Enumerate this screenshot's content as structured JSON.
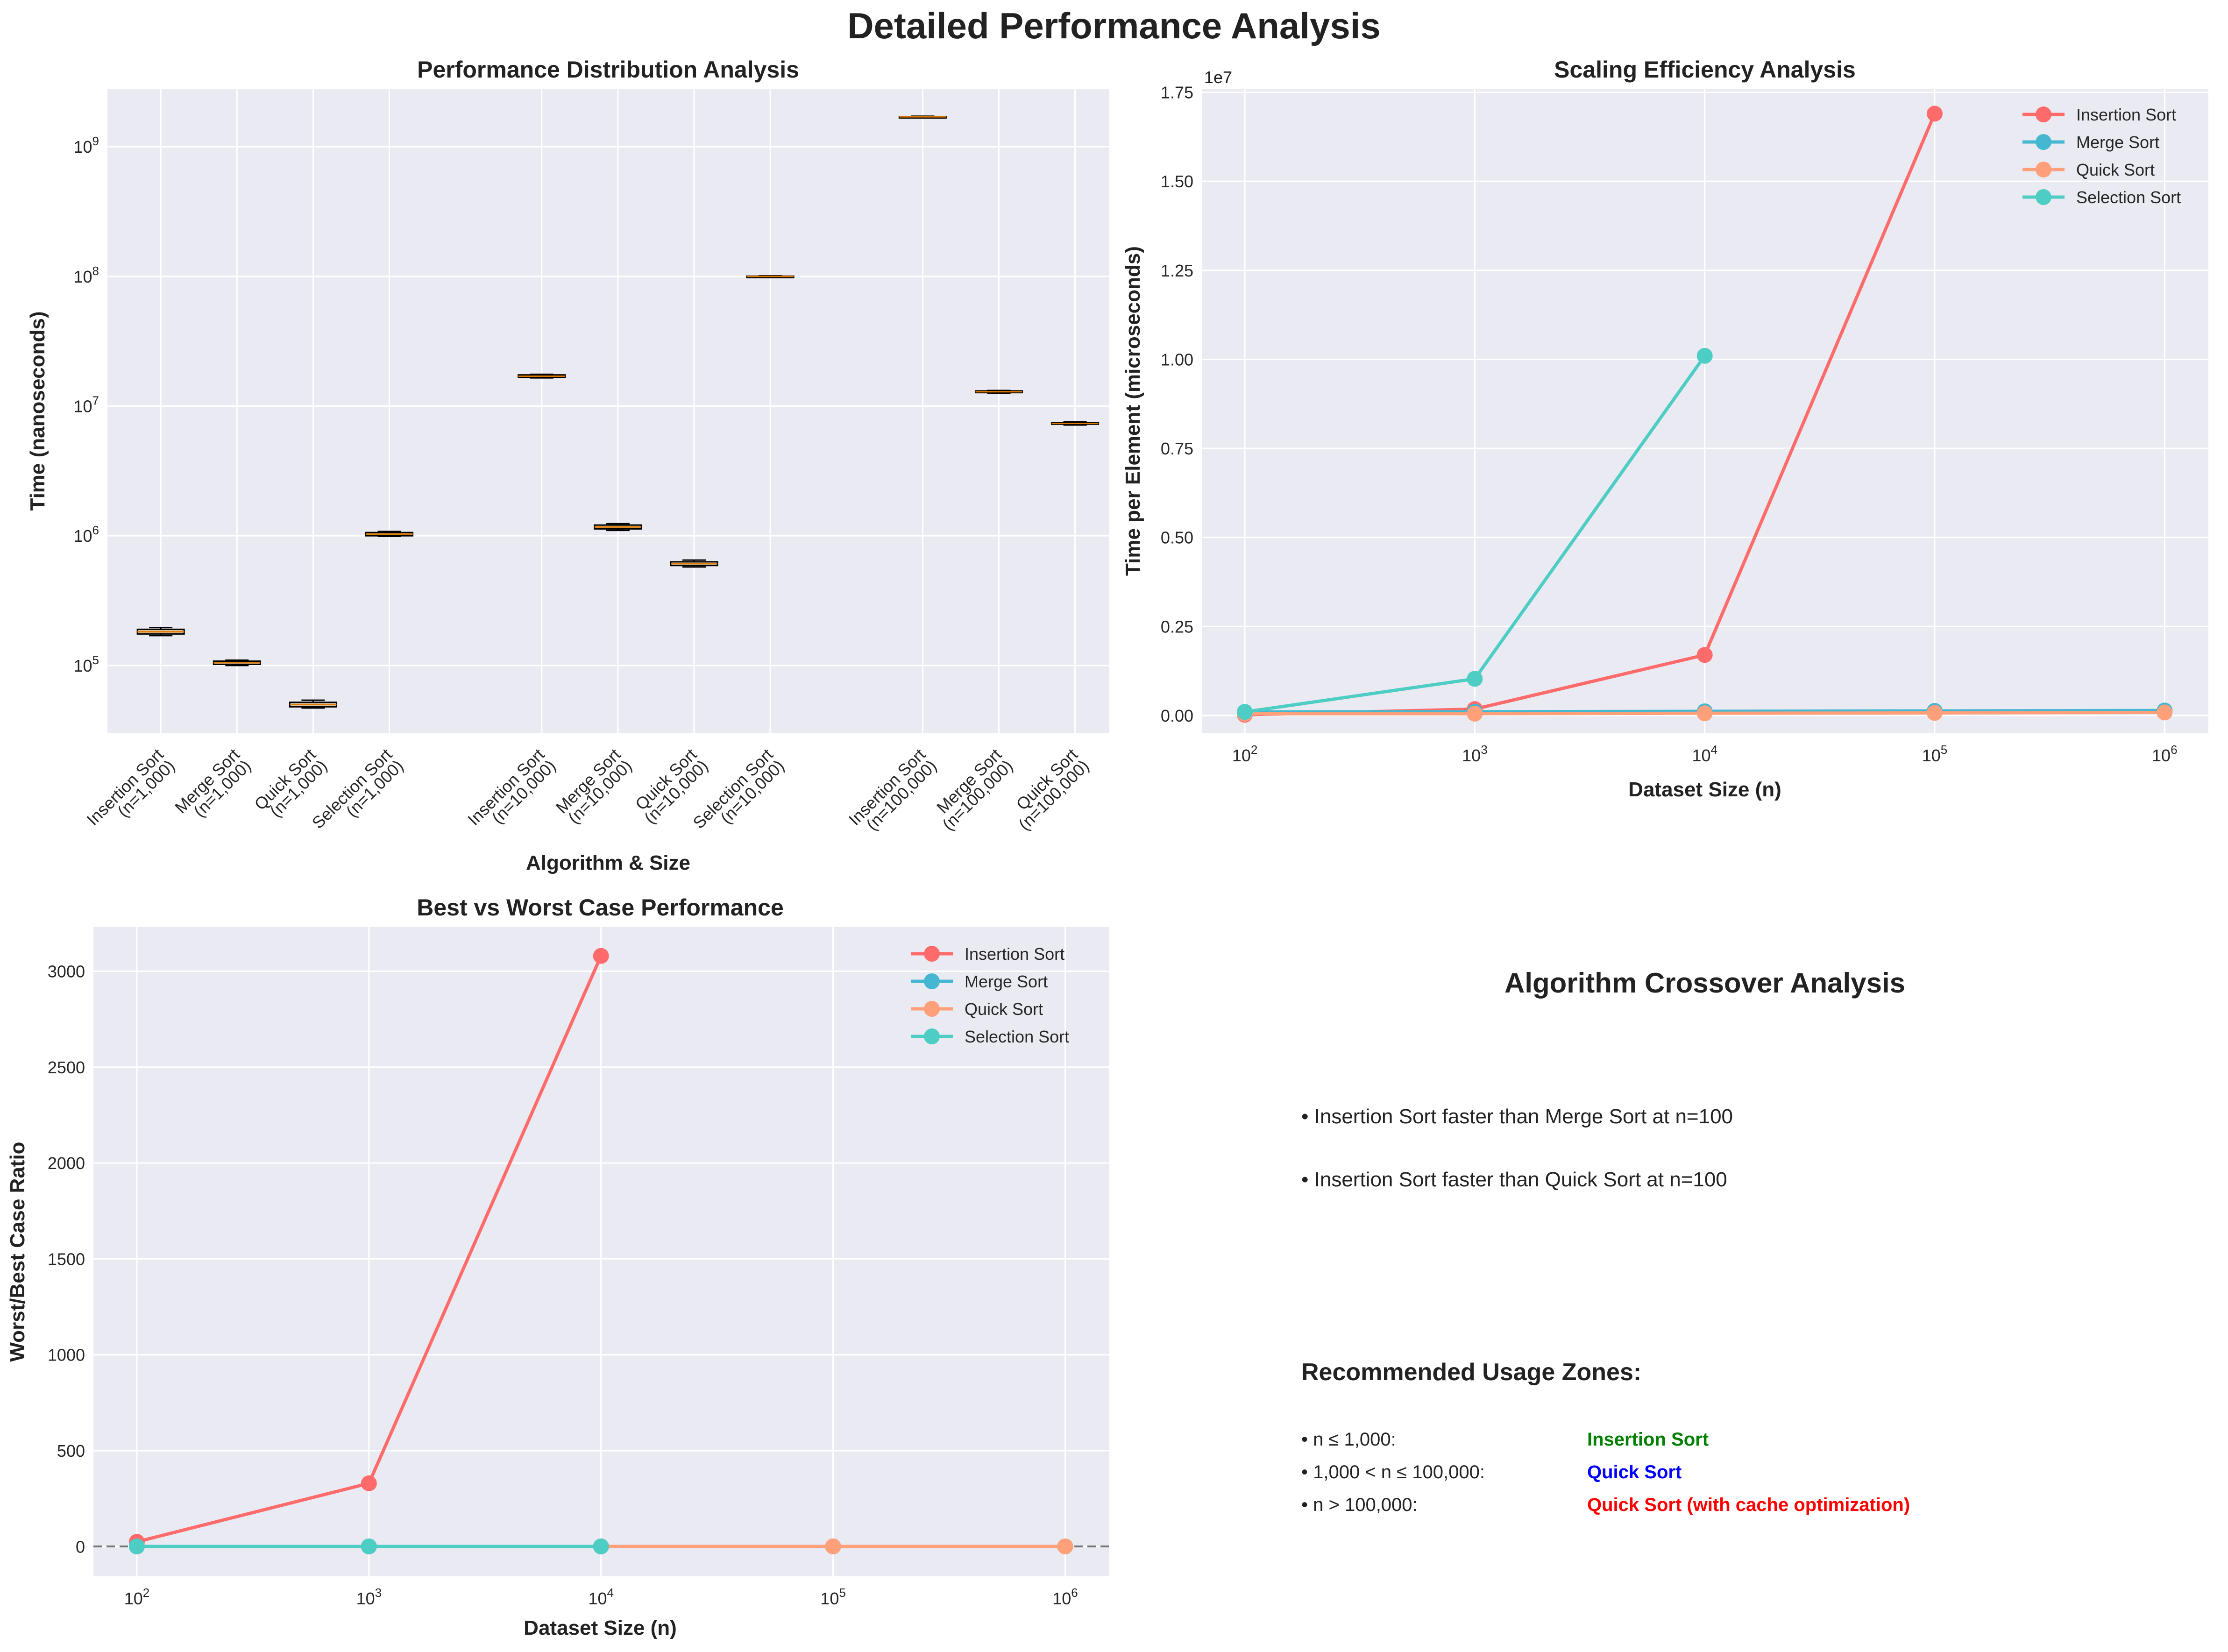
{
  "figure": {
    "title": "Detailed Performance Analysis"
  },
  "chart_data": [
    {
      "type": "box",
      "title": "Performance Distribution Analysis",
      "xlabel": "Algorithm & Size",
      "ylabel": "Time (nanoseconds)",
      "yscale": "log",
      "ylim": [
        30000,
        2800000000
      ],
      "yticks": [
        {
          "v": 100000,
          "b": "10",
          "e": "5"
        },
        {
          "v": 1000000,
          "b": "10",
          "e": "6"
        },
        {
          "v": 10000000,
          "b": "10",
          "e": "7"
        },
        {
          "v": 100000000,
          "b": "10",
          "e": "8"
        },
        {
          "v": 1000000000,
          "b": "10",
          "e": "9"
        }
      ],
      "groups": [
        {
          "label": "Insertion Sort",
          "size": "(n=1,000)",
          "pos": 1,
          "q1": 175000,
          "median": 182000,
          "q3": 190000,
          "min": 170000,
          "max": 196000
        },
        {
          "label": "Merge Sort",
          "size": "(n=1,000)",
          "pos": 2,
          "q1": 102000,
          "median": 105000,
          "q3": 108000,
          "min": 100000,
          "max": 110000
        },
        {
          "label": "Quick Sort",
          "size": "(n=1,000)",
          "pos": 3,
          "q1": 48000,
          "median": 50000,
          "q3": 52000,
          "min": 47000,
          "max": 54000
        },
        {
          "label": "Selection Sort",
          "size": "(n=1,000)",
          "pos": 4,
          "q1": 1000000,
          "median": 1030000,
          "q3": 1060000,
          "min": 990000,
          "max": 1080000
        },
        {
          "label": "Insertion Sort",
          "size": "(n=10,000)",
          "pos": 6,
          "q1": 16700000,
          "median": 17000000,
          "q3": 17400000,
          "min": 16500000,
          "max": 17600000
        },
        {
          "label": "Merge Sort",
          "size": "(n=10,000)",
          "pos": 7,
          "q1": 1130000,
          "median": 1170000,
          "q3": 1210000,
          "min": 1100000,
          "max": 1240000
        },
        {
          "label": "Quick Sort",
          "size": "(n=10,000)",
          "pos": 8,
          "q1": 590000,
          "median": 610000,
          "q3": 630000,
          "min": 575000,
          "max": 650000
        },
        {
          "label": "Selection Sort",
          "size": "(n=10,000)",
          "pos": 9,
          "q1": 99500000,
          "median": 100000000,
          "q3": 100500000,
          "min": 99000000,
          "max": 101000000
        },
        {
          "label": "Insertion Sort",
          "size": "(n=100,000)",
          "pos": 11,
          "q1": 1690000000,
          "median": 1700000000,
          "q3": 1710000000,
          "min": 1680000000,
          "max": 1720000000
        },
        {
          "label": "Merge Sort",
          "size": "(n=100,000)",
          "pos": 12,
          "q1": 12700000,
          "median": 12900000,
          "q3": 13100000,
          "min": 12600000,
          "max": 13200000
        },
        {
          "label": "Quick Sort",
          "size": "(n=100,000)",
          "pos": 13,
          "q1": 7250000,
          "median": 7350000,
          "q3": 7450000,
          "min": 7150000,
          "max": 7550000
        }
      ]
    },
    {
      "type": "line",
      "title": "Scaling Efficiency Analysis",
      "xlabel": "Dataset Size (n)",
      "ylabel": "Time per Element (microseconds)",
      "xscale": "log",
      "xlim": [
        65,
        1550000
      ],
      "ylim": [
        -500000,
        17600000
      ],
      "xticks": [
        {
          "v": 100,
          "b": "10",
          "e": "2"
        },
        {
          "v": 1000,
          "b": "10",
          "e": "3"
        },
        {
          "v": 10000,
          "b": "10",
          "e": "4"
        },
        {
          "v": 100000,
          "b": "10",
          "e": "5"
        },
        {
          "v": 1000000,
          "b": "10",
          "e": "6"
        }
      ],
      "yticks": [
        {
          "v": 0,
          "t": "0.00"
        },
        {
          "v": 2500000,
          "t": "0.25"
        },
        {
          "v": 5000000,
          "t": "0.50"
        },
        {
          "v": 7500000,
          "t": "0.75"
        },
        {
          "v": 10000000,
          "t": "1.00"
        },
        {
          "v": 12500000,
          "t": "1.25"
        },
        {
          "v": 15000000,
          "t": "1.50"
        },
        {
          "v": 17500000,
          "t": "1.75"
        }
      ],
      "y_offset_label": "1e7",
      "legend": "top-right",
      "series": [
        {
          "name": "Insertion Sort",
          "color": "#ff6b6b",
          "x": [
            100,
            1000,
            10000,
            100000
          ],
          "y": [
            20000,
            180000,
            1700000,
            16900000
          ]
        },
        {
          "name": "Merge Sort",
          "color": "#45b7d1",
          "x": [
            100,
            1000,
            10000,
            100000,
            1000000
          ],
          "y": [
            100000,
            105000,
            117000,
            129000,
            140000
          ]
        },
        {
          "name": "Quick Sort",
          "color": "#ffa07a",
          "x": [
            100,
            1000,
            10000,
            100000,
            1000000
          ],
          "y": [
            50000,
            50000,
            61000,
            73000,
            85000
          ]
        },
        {
          "name": "Selection Sort",
          "color": "#4ecdc4",
          "x": [
            100,
            1000,
            10000
          ],
          "y": [
            100000,
            1030000,
            10100000
          ]
        }
      ]
    },
    {
      "type": "line",
      "title": "Best vs Worst Case Performance",
      "xlabel": "Dataset Size (n)",
      "ylabel": "Worst/Best Case Ratio",
      "xscale": "log",
      "xlim": [
        65,
        1550000
      ],
      "ylim": [
        -155,
        3230
      ],
      "xticks": [
        {
          "v": 100,
          "b": "10",
          "e": "2"
        },
        {
          "v": 1000,
          "b": "10",
          "e": "3"
        },
        {
          "v": 10000,
          "b": "10",
          "e": "4"
        },
        {
          "v": 100000,
          "b": "10",
          "e": "5"
        },
        {
          "v": 1000000,
          "b": "10",
          "e": "6"
        }
      ],
      "yticks": [
        {
          "v": 0,
          "t": "0"
        },
        {
          "v": 500,
          "t": "500"
        },
        {
          "v": 1000,
          "t": "1000"
        },
        {
          "v": 1500,
          "t": "1500"
        },
        {
          "v": 2000,
          "t": "2000"
        },
        {
          "v": 2500,
          "t": "2500"
        },
        {
          "v": 3000,
          "t": "3000"
        }
      ],
      "reference_line": 1,
      "legend": "top-right",
      "series": [
        {
          "name": "Insertion Sort",
          "color": "#ff6b6b",
          "x": [
            100,
            1000,
            10000
          ],
          "y": [
            25,
            330,
            3080
          ]
        },
        {
          "name": "Merge Sort",
          "color": "#45b7d1",
          "x": [
            100,
            1000,
            10000,
            100000,
            1000000
          ],
          "y": [
            1,
            1,
            1,
            1,
            1
          ]
        },
        {
          "name": "Quick Sort",
          "color": "#ffa07a",
          "x": [
            100,
            1000,
            10000,
            100000,
            1000000
          ],
          "y": [
            1,
            1,
            1,
            1,
            1
          ]
        },
        {
          "name": "Selection Sort",
          "color": "#4ecdc4",
          "x": [
            100,
            1000,
            10000
          ],
          "y": [
            1,
            1,
            1
          ]
        }
      ]
    }
  ],
  "crossover": {
    "title": "Algorithm Crossover Analysis",
    "findings": [
      "• Insertion Sort faster than Merge Sort at n=100",
      "• Insertion Sort faster than Quick Sort at n=100"
    ],
    "zones_title": "Recommended Usage Zones:",
    "zones": [
      {
        "range": "• n ≤ 1,000:",
        "algorithm": "Insertion Sort",
        "color": "#008000"
      },
      {
        "range": "• 1,000 < n ≤ 100,000:",
        "algorithm": "Quick Sort",
        "color": "#0000ff"
      },
      {
        "range": "• n > 100,000:",
        "algorithm": "Quick Sort (with cache optimization)",
        "color": "#ff0000"
      }
    ]
  }
}
